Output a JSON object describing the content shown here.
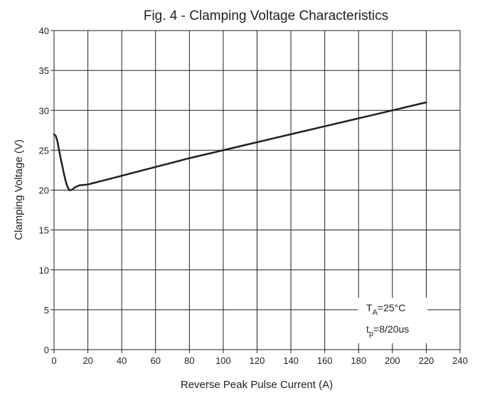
{
  "chart_data": {
    "type": "line",
    "title": "Fig. 4 - Clamping Voltage Characteristics",
    "xlabel": "Reverse Peak Pulse Current (A)",
    "ylabel": "Clamping Voltage (V)",
    "xlim": [
      0,
      240
    ],
    "ylim": [
      0,
      40
    ],
    "x_ticks": [
      0,
      20,
      40,
      60,
      80,
      100,
      120,
      140,
      160,
      180,
      200,
      220,
      240
    ],
    "y_ticks": [
      0,
      5,
      10,
      15,
      20,
      25,
      30,
      35,
      40
    ],
    "grid": true,
    "series": [
      {
        "x": [
          0,
          1,
          2,
          3,
          4,
          5,
          6,
          7,
          8,
          9,
          10,
          11,
          12,
          13,
          14,
          15,
          20,
          40,
          60,
          80,
          100,
          120,
          140,
          160,
          180,
          200,
          220
        ],
        "y": [
          27.0,
          26.8,
          26.1,
          25.0,
          23.9,
          22.9,
          21.9,
          21.0,
          20.4,
          20.0,
          20.0,
          20.1,
          20.3,
          20.4,
          20.5,
          20.6,
          20.7,
          21.8,
          22.9,
          24.0,
          25.0,
          26.0,
          27.0,
          28.0,
          29.0,
          30.0,
          31.0
        ],
        "color": "#231f20"
      }
    ],
    "annotations": [
      {
        "main": "T",
        "sub": "A",
        "rest": "=25°C"
      },
      {
        "main": "t",
        "sub": "p",
        "rest": "=8/20us"
      }
    ]
  }
}
